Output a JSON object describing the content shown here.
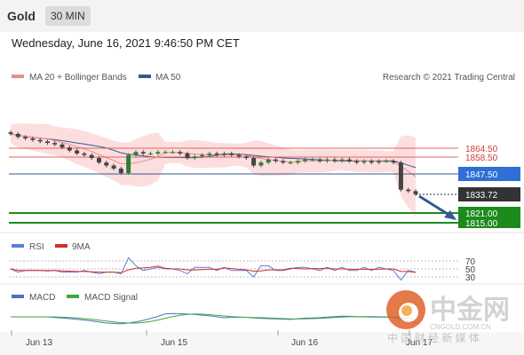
{
  "header": {
    "title": "Gold",
    "timeframe": "30 MIN",
    "datetime": "Wednesday, June 16, 2021 9:46:50 PM CET"
  },
  "legend": {
    "ma20": "MA 20 + Bollinger Bands",
    "ma50": "MA 50",
    "credit": "Research © 2021 Trading Central",
    "rsi": "RSI",
    "rsi_ma": "9MA",
    "macd": "MACD",
    "macd_signal": "MACD Signal"
  },
  "watermark": {
    "brand": "中金网",
    "domain": "CNGOLD.COM.CN",
    "subtitle": "中 国 财 经 新 媒 体"
  },
  "colors": {
    "ma20": "#e88d8d",
    "ma50": "#335a94",
    "price_line": "#335a94",
    "support": "#1d8a1d",
    "resistance": "#e86060",
    "current": "#333333",
    "rsi": "#5a7fd6",
    "rsi_ma": "#d62b2b",
    "macd": "#4e6fc4",
    "macd_signal": "#3da83d",
    "candle_up": "#2e7d32",
    "candle_down": "#444444",
    "band": "#fbd3d3"
  },
  "chart_data": [
    {
      "type": "line",
      "title": "",
      "x": [
        "Jun 13",
        "Jun 15",
        "Jun 16",
        "Jun 17"
      ],
      "levels": {
        "resistance_2": 1864.5,
        "resistance_1": 1858.5,
        "pivot": 1847.5,
        "current_price": 1833.72,
        "support_1": 1821.0,
        "support_2": 1815.0
      },
      "level_labels": [
        "1864.50",
        "1858.50",
        "1847.50",
        "1833.72",
        "1821.00",
        "1815.00"
      ],
      "price_series": [
        1874,
        1872,
        1871,
        1870,
        1869,
        1868,
        1867,
        1865,
        1863,
        1861,
        1860,
        1858,
        1855,
        1853,
        1851,
        1848,
        1860,
        1862,
        1861,
        1861,
        1862,
        1862,
        1862,
        1861,
        1858,
        1859,
        1860,
        1861,
        1860,
        1861,
        1860,
        1859,
        1858,
        1853,
        1855,
        1857,
        1856,
        1855,
        1855,
        1856,
        1857,
        1857,
        1856,
        1857,
        1856,
        1857,
        1856,
        1855,
        1856,
        1855,
        1856,
        1856,
        1855,
        1837,
        1836,
        1834
      ],
      "forecast": {
        "from": 1835,
        "to": 1818
      }
    },
    {
      "type": "line",
      "title": "",
      "series_names": [
        "RSI",
        "9MA"
      ],
      "levels": [
        70,
        50,
        30
      ],
      "level_labels": [
        "70",
        "50",
        "30"
      ]
    },
    {
      "type": "line",
      "title": "",
      "series_names": [
        "MACD",
        "MACD Signal"
      ]
    }
  ]
}
